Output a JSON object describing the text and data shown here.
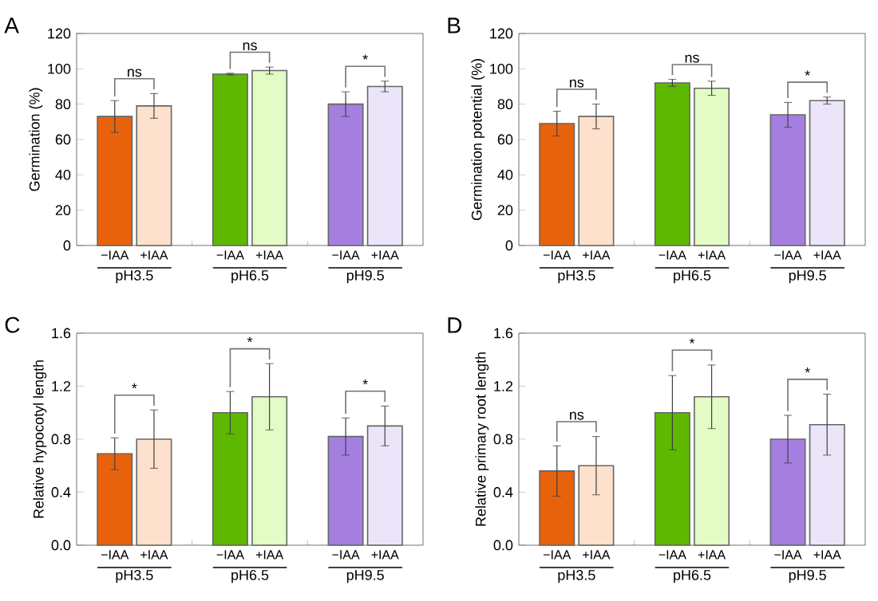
{
  "chart_data": [
    {
      "type": "bar",
      "title": "A",
      "ylabel": "Germination (%)",
      "categories": [
        "pH3.5",
        "pH6.5",
        "pH9.5"
      ],
      "ylim": [
        0,
        120
      ],
      "yticks": [
        0,
        20,
        40,
        60,
        80,
        100,
        120
      ],
      "annotations": [
        "ns",
        "ns",
        "*"
      ],
      "series": [
        {
          "name": "−IAA",
          "colors": [
            "#e8620c",
            "#5fb800",
            "#a47fe0"
          ],
          "values": [
            73,
            97,
            80
          ],
          "errors": [
            9,
            0.5,
            7
          ]
        },
        {
          "name": "+IAA",
          "colors": [
            "#fde1cc",
            "#e3fbc4",
            "#ece5fa"
          ],
          "values": [
            79,
            99,
            90
          ],
          "errors": [
            7,
            2,
            3
          ]
        }
      ]
    },
    {
      "type": "bar",
      "title": "B",
      "ylabel": "Germination potential (%)",
      "categories": [
        "pH3.5",
        "pH6.5",
        "pH9.5"
      ],
      "ylim": [
        0,
        120
      ],
      "yticks": [
        0,
        20,
        40,
        60,
        80,
        100,
        120
      ],
      "annotations": [
        "ns",
        "ns",
        "*"
      ],
      "series": [
        {
          "name": "−IAA",
          "colors": [
            "#e8620c",
            "#5fb800",
            "#a47fe0"
          ],
          "values": [
            69,
            92,
            74
          ],
          "errors": [
            7,
            2,
            7
          ]
        },
        {
          "name": "+IAA",
          "colors": [
            "#fde1cc",
            "#e3fbc4",
            "#ece5fa"
          ],
          "values": [
            73,
            89,
            82
          ],
          "errors": [
            7,
            4,
            2
          ]
        }
      ]
    },
    {
      "type": "bar",
      "title": "C",
      "ylabel": "Relative hypocotyl length",
      "categories": [
        "pH3.5",
        "pH6.5",
        "pH9.5"
      ],
      "ylim": [
        0,
        1.6
      ],
      "yticks": [
        {
          "value": 0,
          "label": "0.0"
        },
        {
          "value": 0.4,
          "label": "0.4"
        },
        {
          "value": 0.8,
          "label": "0.8"
        },
        {
          "value": 1.2,
          "label": "1.2"
        },
        {
          "value": 1.6,
          "label": "1.6"
        }
      ],
      "annotations": [
        "*",
        "*",
        "*"
      ],
      "series": [
        {
          "name": "−IAA",
          "colors": [
            "#e8620c",
            "#5fb800",
            "#a47fe0"
          ],
          "values": [
            0.69,
            1.0,
            0.82
          ],
          "errors": [
            0.12,
            0.16,
            0.14
          ]
        },
        {
          "name": "+IAA",
          "colors": [
            "#fde1cc",
            "#e3fbc4",
            "#ece5fa"
          ],
          "values": [
            0.8,
            1.12,
            0.9
          ],
          "errors": [
            0.22,
            0.25,
            0.15
          ]
        }
      ]
    },
    {
      "type": "bar",
      "title": "D",
      "ylabel": "Relative primary root length",
      "categories": [
        "pH3.5",
        "pH6.5",
        "pH9.5"
      ],
      "ylim": [
        0,
        1.6
      ],
      "yticks": [
        {
          "value": 0,
          "label": "0.0"
        },
        {
          "value": 0.4,
          "label": "0.4"
        },
        {
          "value": 0.8,
          "label": "0.8"
        },
        {
          "value": 1.2,
          "label": "1.2"
        },
        {
          "value": 1.6,
          "label": "1.6"
        }
      ],
      "annotations": [
        "ns",
        "*",
        "*"
      ],
      "series": [
        {
          "name": "−IAA",
          "colors": [
            "#e8620c",
            "#5fb800",
            "#a47fe0"
          ],
          "values": [
            0.56,
            1.0,
            0.8
          ],
          "errors": [
            0.19,
            0.28,
            0.18
          ]
        },
        {
          "name": "+IAA",
          "colors": [
            "#fde1cc",
            "#e3fbc4",
            "#ece5fa"
          ],
          "values": [
            0.6,
            1.12,
            0.91
          ],
          "errors": [
            0.22,
            0.24,
            0.23
          ]
        }
      ]
    }
  ]
}
